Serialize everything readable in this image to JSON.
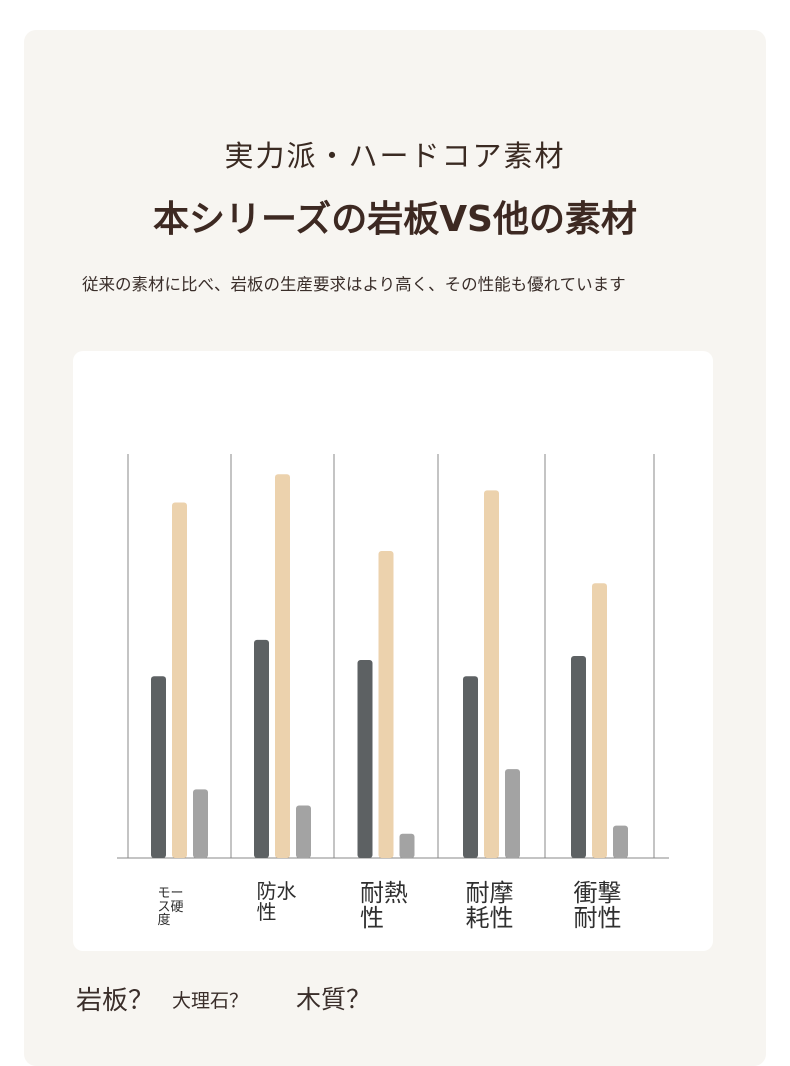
{
  "header": {
    "subtitle": "実力派・ハードコア素材",
    "title": "本シリーズの岩板VS他の素材",
    "description": "従来の素材に比べ、岩板の生産要求はより高く、その性能も優れています"
  },
  "colors": {
    "dark_bar": "#5d6163",
    "beige_bar": "#ecd2ad",
    "gray_bar": "#a3a3a3",
    "axis": "#888888"
  },
  "chart_data": {
    "type": "bar",
    "title": "",
    "xlabel": "",
    "ylabel": "",
    "ylim": [
      0,
      100
    ],
    "grid": false,
    "categories": [
      [
        "モー",
        "ス硬",
        "度"
      ],
      [
        "防水",
        "性"
      ],
      [
        "耐熱",
        "性"
      ],
      [
        "耐摩",
        "耗性"
      ],
      [
        "衝撃",
        "耐性"
      ]
    ],
    "series": [
      {
        "values": [
          45,
          54,
          49,
          45,
          50
        ]
      },
      {
        "values": [
          88,
          95,
          76,
          91,
          68
        ]
      },
      {
        "values": [
          17,
          13,
          6,
          22,
          8
        ]
      }
    ],
    "legend": [
      "岩板？",
      "大理石？",
      "木質？"
    ]
  }
}
